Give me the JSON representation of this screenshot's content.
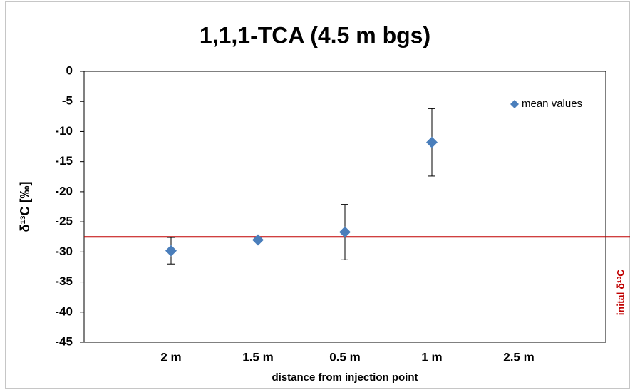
{
  "chart_data": {
    "type": "scatter",
    "title": "1,1,1-TCA (4.5 m bgs)",
    "x_label": "distance from injection point",
    "y_label": "δ¹³C [‰]",
    "categories": [
      "2 m",
      "1.5 m",
      "0.5 m",
      "1 m",
      "2.5 m"
    ],
    "series": [
      {
        "name": "mean values",
        "color": "#4a7ebb",
        "values": [
          -29.8,
          -28.0,
          -26.7,
          -11.8,
          null
        ],
        "errors": [
          2.2,
          0.3,
          4.6,
          5.6,
          null
        ]
      }
    ],
    "reference_line": {
      "value": -27.5,
      "label": "inital δ¹³C",
      "color": "#c00000"
    },
    "ylim": [
      -45,
      0
    ],
    "yticks": [
      -45,
      -40,
      -35,
      -30,
      -25,
      -20,
      -15,
      -10,
      -5,
      0
    ],
    "legend": "upper right"
  }
}
